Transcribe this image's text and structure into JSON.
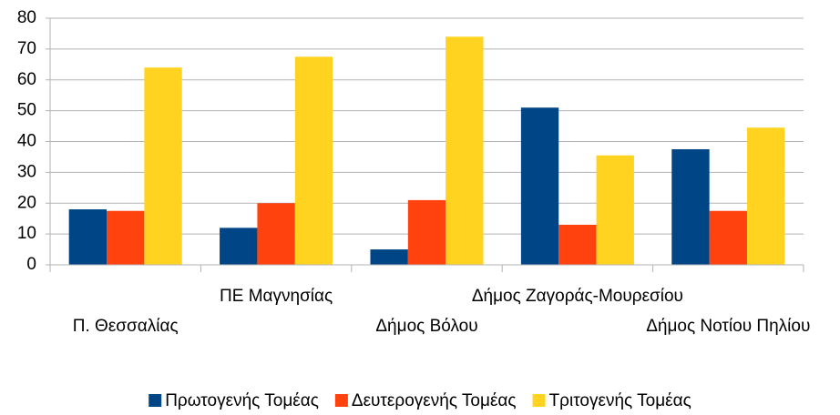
{
  "chart_data": {
    "type": "bar",
    "categories": [
      "Π. Θεσσαλίας",
      "ΠΕ Μαγνησίας",
      "Δήμος Βόλου",
      "Δήμος Ζαγοράς-Μουρεσίου",
      "Δήμος Νοτίου Πηλίου"
    ],
    "series": [
      {
        "name": "Πρωτογενής Τομέας",
        "color": "#004586",
        "values": [
          18,
          12,
          5,
          51,
          37.5
        ]
      },
      {
        "name": "Δευτερογενής Τομέας",
        "color": "#ff420e",
        "values": [
          17.5,
          20,
          21,
          13,
          17.5
        ]
      },
      {
        "name": "Τριτογενής Τομέας",
        "color": "#ffd320",
        "values": [
          64,
          67.5,
          74,
          35.5,
          44.5
        ]
      }
    ],
    "ylim": [
      0,
      80
    ],
    "yticks": [
      0,
      10,
      20,
      30,
      40,
      50,
      60,
      70,
      80
    ],
    "grid": true,
    "legend": "bottom"
  }
}
